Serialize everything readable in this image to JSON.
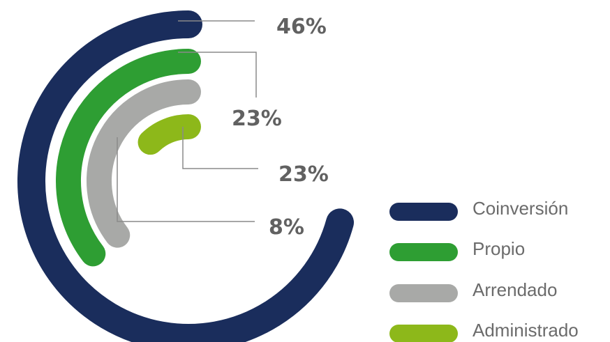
{
  "chart_data": {
    "type": "radial-bar",
    "title": "",
    "series": [
      {
        "name": "Coinversión",
        "value": 46,
        "label": "46%",
        "color": "#1a2d5c"
      },
      {
        "name": "Propio",
        "value": 23,
        "label": "23%",
        "color": "#2e9e33"
      },
      {
        "name": "Arrendado",
        "value": 23,
        "label": "23%",
        "color": "#a8a9a7"
      },
      {
        "name": "Administrado",
        "value": 8,
        "label": "8%",
        "color": "#8db81a"
      }
    ],
    "legend": "bottom-right",
    "grid": false
  }
}
